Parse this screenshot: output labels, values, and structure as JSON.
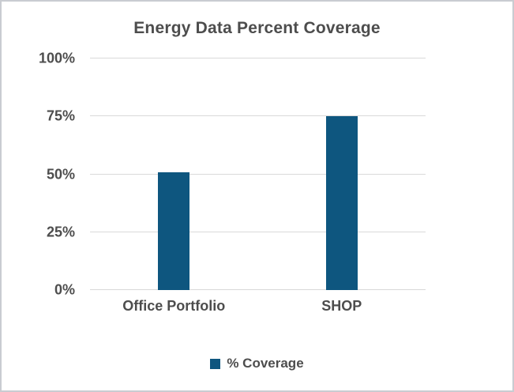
{
  "chart_data": {
    "type": "bar",
    "title": "Energy Data Percent Coverage",
    "categories": [
      "Office Portfolio",
      "SHOP"
    ],
    "series": [
      {
        "name": "% Coverage",
        "values": [
          51,
          75
        ]
      }
    ],
    "xlabel": "",
    "ylabel": "",
    "ylim": [
      0,
      100
    ],
    "yticks": [
      0,
      25,
      50,
      75,
      100
    ],
    "ytick_labels": [
      "0%",
      "25%",
      "50%",
      "75%",
      "100%"
    ],
    "grid": true,
    "legend_position": "bottom",
    "bar_color": "#0e567f",
    "gridline_color": "#d9d9d9",
    "text_color": "#4d4d4d",
    "background_color": "#ffffff"
  }
}
